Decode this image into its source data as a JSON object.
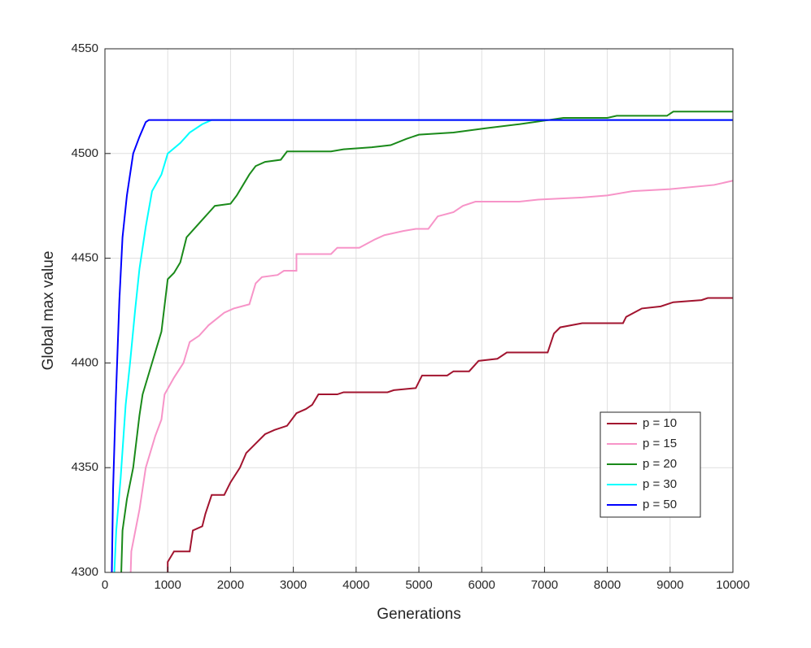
{
  "chart_data": {
    "type": "line",
    "xlabel": "Generations",
    "ylabel": "Global max value",
    "xlim": [
      0,
      10000
    ],
    "ylim": [
      4300,
      4550
    ],
    "xticks": [
      0,
      1000,
      2000,
      3000,
      4000,
      5000,
      6000,
      7000,
      8000,
      9000,
      10000
    ],
    "yticks": [
      4300,
      4350,
      4400,
      4450,
      4500,
      4550
    ],
    "grid": true,
    "legend": "lower right",
    "series": [
      {
        "name": "p = 10",
        "color": "#a2142f",
        "x": [
          1000,
          1000,
          1100,
          1350,
          1400,
          1550,
          1600,
          1700,
          1900,
          2000,
          2150,
          2250,
          2350,
          2550,
          2700,
          2900,
          3050,
          3200,
          3300,
          3400,
          3700,
          3800,
          4500,
          4600,
          4950,
          5050,
          5450,
          5550,
          5800,
          5950,
          6250,
          6400,
          7050,
          7150,
          7250,
          7600,
          8250,
          8300,
          8550,
          8850,
          9050,
          9500,
          9600,
          10000
        ],
        "values": [
          4300,
          4305,
          4310,
          4310,
          4320,
          4322,
          4328,
          4337,
          4337,
          4343,
          4350,
          4357,
          4360,
          4366,
          4368,
          4370,
          4376,
          4378,
          4380,
          4385,
          4385,
          4386,
          4386,
          4387,
          4388,
          4394,
          4394,
          4396,
          4396,
          4401,
          4402,
          4405,
          4405,
          4414,
          4417,
          4419,
          4419,
          4422,
          4426,
          4427,
          4429,
          4430,
          4431,
          4431
        ]
      },
      {
        "name": "p = 15",
        "color": "#f794c8",
        "x": [
          410,
          420,
          550,
          650,
          800,
          900,
          950,
          1100,
          1250,
          1350,
          1500,
          1650,
          1900,
          2050,
          2300,
          2400,
          2500,
          2750,
          2850,
          3050,
          3050,
          3600,
          3700,
          4050,
          4300,
          4450,
          4750,
          4950,
          5150,
          5300,
          5550,
          5700,
          5900,
          6600,
          6900,
          7600,
          8000,
          8400,
          9000,
          9700,
          10000
        ],
        "values": [
          4300,
          4310,
          4330,
          4350,
          4365,
          4373,
          4385,
          4393,
          4400,
          4410,
          4413,
          4418,
          4424,
          4426,
          4428,
          4438,
          4441,
          4442,
          4444,
          4444,
          4452,
          4452,
          4455,
          4455,
          4459,
          4461,
          4463,
          4464,
          4464,
          4470,
          4472,
          4475,
          4477,
          4477,
          4478,
          4479,
          4480,
          4482,
          4483,
          4485,
          4487
        ]
      },
      {
        "name": "p = 20",
        "color": "#1a8a1a",
        "x": [
          260,
          280,
          350,
          450,
          550,
          600,
          750,
          900,
          1000,
          1100,
          1200,
          1300,
          1450,
          1600,
          1750,
          2000,
          2100,
          2200,
          2300,
          2400,
          2550,
          2800,
          2900,
          3600,
          3800,
          4250,
          4550,
          4800,
          5000,
          5550,
          6050,
          6600,
          7300,
          8000,
          8150,
          8950,
          9050,
          10000
        ],
        "values": [
          4300,
          4320,
          4335,
          4350,
          4375,
          4385,
          4400,
          4415,
          4440,
          4443,
          4448,
          4460,
          4465,
          4470,
          4475,
          4476,
          4480,
          4485,
          4490,
          4494,
          4496,
          4497,
          4501,
          4501,
          4502,
          4503,
          4504,
          4507,
          4509,
          4510,
          4512,
          4514,
          4517,
          4517,
          4518,
          4518,
          4520,
          4520
        ]
      },
      {
        "name": "p = 30",
        "color": "#00ffff",
        "x": [
          150,
          180,
          250,
          330,
          400,
          480,
          550,
          650,
          750,
          900,
          1000,
          1200,
          1350,
          1550,
          1700,
          10000
        ],
        "values": [
          4300,
          4320,
          4345,
          4380,
          4400,
          4425,
          4445,
          4465,
          4482,
          4490,
          4500,
          4505,
          4510,
          4514,
          4516,
          4516
        ]
      },
      {
        "name": "p = 50",
        "color": "#0000ff",
        "x": [
          110,
          130,
          170,
          230,
          280,
          350,
          450,
          550,
          650,
          700,
          10000
        ],
        "values": [
          4300,
          4340,
          4380,
          4430,
          4460,
          4480,
          4500,
          4508,
          4515,
          4516,
          4516
        ]
      }
    ]
  }
}
